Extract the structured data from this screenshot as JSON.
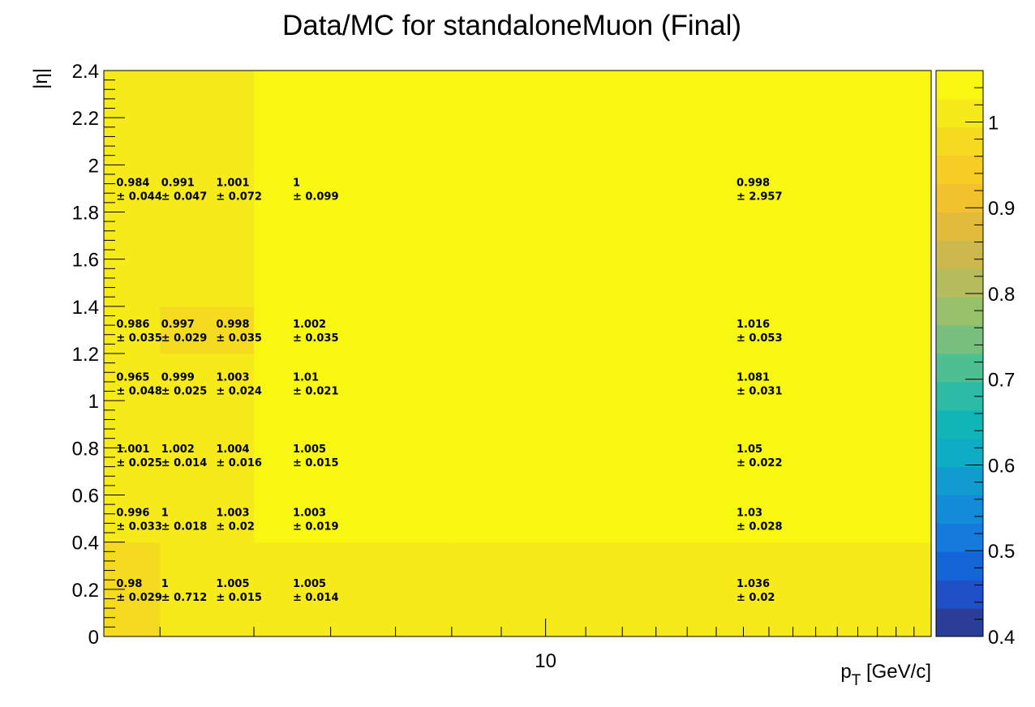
{
  "chart_data": {
    "type": "heatmap",
    "title": "Data/MC for standaloneMuon (Final)",
    "xlabel": "p_T [GeV/c]",
    "ylabel": "|η|",
    "xscale": "log",
    "xlim": [
      3.5,
      25
    ],
    "ylim": [
      0,
      2.4
    ],
    "zlim": [
      0.4,
      1.06
    ],
    "x_tick_labels": [
      "10"
    ],
    "y_tick_labels": [
      "0",
      "0.2",
      "0.4",
      "0.6",
      "0.8",
      "1",
      "1.2",
      "1.4",
      "1.6",
      "1.8",
      "2",
      "2.2",
      "2.4"
    ],
    "z_tick_labels": [
      "0.4",
      "0.5",
      "0.6",
      "0.7",
      "0.8",
      "0.9",
      "1"
    ],
    "x_edges": [
      3.5,
      4.0,
      5.0,
      8.0,
      25.0
    ],
    "y_edges": [
      0,
      0.4,
      0.95,
      1.2,
      1.4,
      2.4
    ],
    "cell_values": [
      [
        0.98,
        0.996,
        1.0,
        1.0,
        1.0
      ],
      [
        1.0,
        1.0,
        0.996,
        0.99,
        1.0
      ],
      [
        1.0,
        1.06,
        1.06,
        1.06,
        1.06
      ],
      [
        1.0,
        1.06,
        1.06,
        1.06,
        1.06
      ]
    ],
    "text_labels": [
      {
        "x": 3.55,
        "y": 1.9,
        "value": "0.984",
        "error": "± 0.044"
      },
      {
        "x": 3.95,
        "y": 1.9,
        "value": "0.991",
        "error": "± 0.047"
      },
      {
        "x": 4.5,
        "y": 1.9,
        "value": "1.001",
        "error": "± 0.072"
      },
      {
        "x": 5.4,
        "y": 1.9,
        "value": "1",
        "error": "± 0.099"
      },
      {
        "x": 15.5,
        "y": 1.9,
        "value": "0.998",
        "error": "± 2.957"
      },
      {
        "x": 3.55,
        "y": 1.3,
        "value": "0.986",
        "error": "± 0.035"
      },
      {
        "x": 3.95,
        "y": 1.3,
        "value": "0.997",
        "error": "± 0.029"
      },
      {
        "x": 4.5,
        "y": 1.3,
        "value": "0.998",
        "error": "± 0.035"
      },
      {
        "x": 5.4,
        "y": 1.3,
        "value": "1.002",
        "error": "± 0.035"
      },
      {
        "x": 15.5,
        "y": 1.3,
        "value": "1.016",
        "error": "± 0.053"
      },
      {
        "x": 3.55,
        "y": 1.075,
        "value": "0.965",
        "error": "± 0.048"
      },
      {
        "x": 3.95,
        "y": 1.075,
        "value": "0.999",
        "error": "± 0.025"
      },
      {
        "x": 4.5,
        "y": 1.075,
        "value": "1.003",
        "error": "± 0.024"
      },
      {
        "x": 5.4,
        "y": 1.075,
        "value": "1.01",
        "error": "± 0.021"
      },
      {
        "x": 15.5,
        "y": 1.075,
        "value": "1.081",
        "error": "± 0.031"
      },
      {
        "x": 3.55,
        "y": 0.77,
        "value": "1.001",
        "error": "± 0.025"
      },
      {
        "x": 3.95,
        "y": 0.77,
        "value": "1.002",
        "error": "± 0.014"
      },
      {
        "x": 4.5,
        "y": 0.77,
        "value": "1.004",
        "error": "± 0.016"
      },
      {
        "x": 5.4,
        "y": 0.77,
        "value": "1.005",
        "error": "± 0.015"
      },
      {
        "x": 15.5,
        "y": 0.77,
        "value": "1.05",
        "error": "± 0.022"
      },
      {
        "x": 3.55,
        "y": 0.5,
        "value": "0.996",
        "error": "± 0.033"
      },
      {
        "x": 3.95,
        "y": 0.5,
        "value": "1",
        "error": "± 0.018"
      },
      {
        "x": 4.5,
        "y": 0.5,
        "value": "1.003",
        "error": "± 0.02"
      },
      {
        "x": 5.4,
        "y": 0.5,
        "value": "1.003",
        "error": "± 0.019"
      },
      {
        "x": 15.5,
        "y": 0.5,
        "value": "1.03",
        "error": "± 0.028"
      },
      {
        "x": 3.55,
        "y": 0.2,
        "value": "0.98",
        "error": "± 0.029"
      },
      {
        "x": 3.95,
        "y": 0.2,
        "value": "1",
        "error": "± 0.712"
      },
      {
        "x": 4.5,
        "y": 0.2,
        "value": "1.005",
        "error": "± 0.015"
      },
      {
        "x": 5.4,
        "y": 0.2,
        "value": "1.005",
        "error": "± 0.014"
      },
      {
        "x": 15.5,
        "y": 0.2,
        "value": "1.036",
        "error": "± 0.02"
      }
    ],
    "palette": [
      "#2a3e97",
      "#1f50c8",
      "#1466d8",
      "#147adb",
      "#138bd6",
      "#109ccf",
      "#0eacc5",
      "#12b5b5",
      "#2dbba5",
      "#4ebf91",
      "#78bf7d",
      "#98bf6a",
      "#b4bc5b",
      "#cdb84d",
      "#e2bb3b",
      "#f1c22d",
      "#f8cd23",
      "#f5db1f",
      "#f7ea1a",
      "#f7f712"
    ],
    "grid": false,
    "legend": "colorbar-right"
  }
}
